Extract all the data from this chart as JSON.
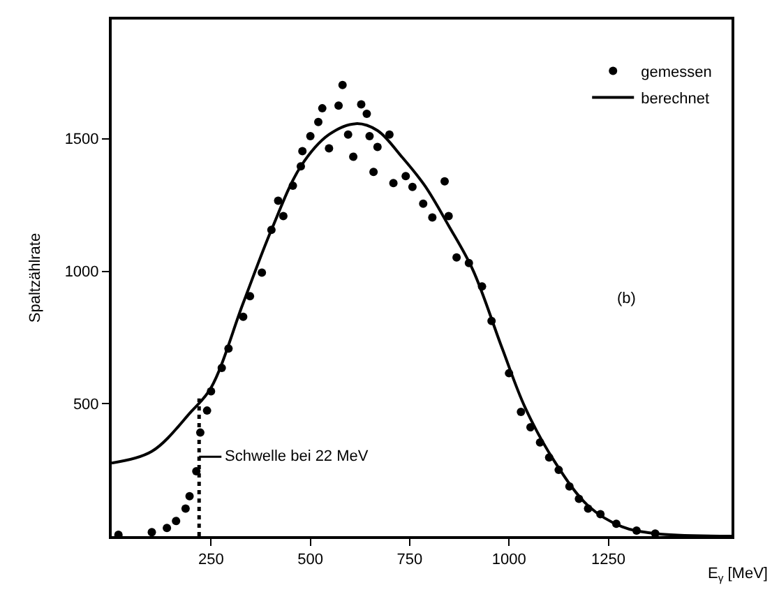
{
  "chart_data": {
    "type": "scatter",
    "ylabel": "Spaltzählrate",
    "xlabel": "E$_{γ}$ [MeV]",
    "xlim": [
      0,
      1560
    ],
    "ylim": [
      0,
      1950
    ],
    "xticks": [
      250,
      500,
      750,
      1000,
      1250
    ],
    "yticks": [
      500,
      1000,
      1500
    ],
    "legend": "top right",
    "series": [
      {
        "name": "gemessen",
        "marker": "circle",
        "color": "#000000",
        "x": [
          17,
          101,
          139,
          162,
          186,
          196,
          213,
          223,
          240,
          250,
          277,
          294,
          331,
          348,
          378,
          402,
          419,
          432,
          456,
          476,
          480,
          500,
          520,
          530,
          547,
          571,
          581,
          595,
          608,
          628,
          642,
          649,
          659,
          669,
          699,
          709,
          740,
          757,
          784,
          807,
          838,
          848,
          868,
          899,
          932,
          956,
          1000,
          1030,
          1054,
          1078,
          1101,
          1125,
          1152,
          1176,
          1199,
          1230,
          1270,
          1321,
          1368
        ],
        "values": [
          5,
          15,
          31,
          57,
          104,
          151,
          245,
          391,
          474,
          547,
          635,
          708,
          828,
          906,
          995,
          1156,
          1266,
          1208,
          1323,
          1396,
          1453,
          1510,
          1563,
          1615,
          1464,
          1625,
          1703,
          1516,
          1432,
          1630,
          1594,
          1510,
          1375,
          1469,
          1516,
          1333,
          1359,
          1318,
          1255,
          1203,
          1339,
          1208,
          1052,
          1031,
          943,
          812,
          615,
          469,
          411,
          354,
          297,
          250,
          188,
          141,
          104,
          83,
          47,
          21,
          10
        ]
      },
      {
        "name": "berechnet",
        "type": "line",
        "marker": "none",
        "line_style": "solid",
        "color": "#000000",
        "x": [
          0,
          101,
          200,
          250,
          331,
          402,
          476,
          547,
          615,
          669,
          730,
          788,
          848,
          909,
          983,
          1041,
          1115,
          1199,
          1284,
          1368,
          1560
        ],
        "values": [
          276,
          320,
          470,
          560,
          880,
          1156,
          1396,
          1516,
          1557,
          1531,
          1432,
          1323,
          1172,
          1005,
          708,
          484,
          281,
          115,
          36,
          10,
          0
        ]
      },
      {
        "type": "line",
        "marker": "none",
        "line_style": "dotted",
        "color": "#000000",
        "x": [
          220,
          220
        ],
        "values": [
          0,
          520
        ]
      }
    ],
    "annotations": [
      {
        "text": "Schwelle bei 22 MeV",
        "x": 220,
        "y": 300
      },
      "(b)"
    ]
  }
}
